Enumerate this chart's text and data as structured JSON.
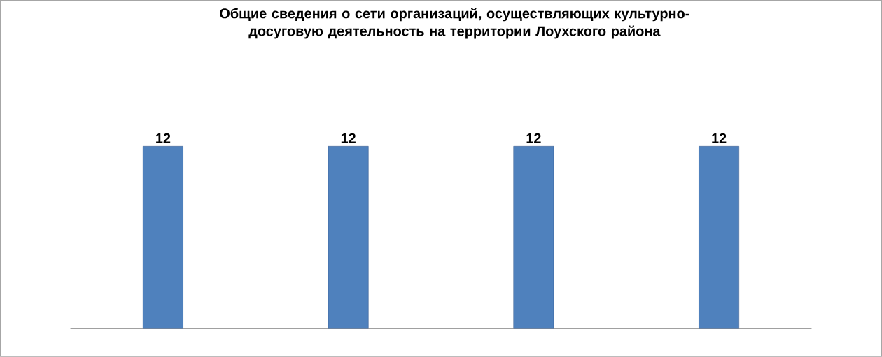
{
  "chart_data": {
    "type": "bar",
    "title": "Общие сведения о сети организаций, осуществляющих культурно-досуговую деятельность на территории Лоухского района",
    "categories": [
      null,
      null,
      null,
      null
    ],
    "values": [
      12,
      12,
      12,
      12
    ],
    "color": "#4f81bd",
    "data_labels": true
  }
}
